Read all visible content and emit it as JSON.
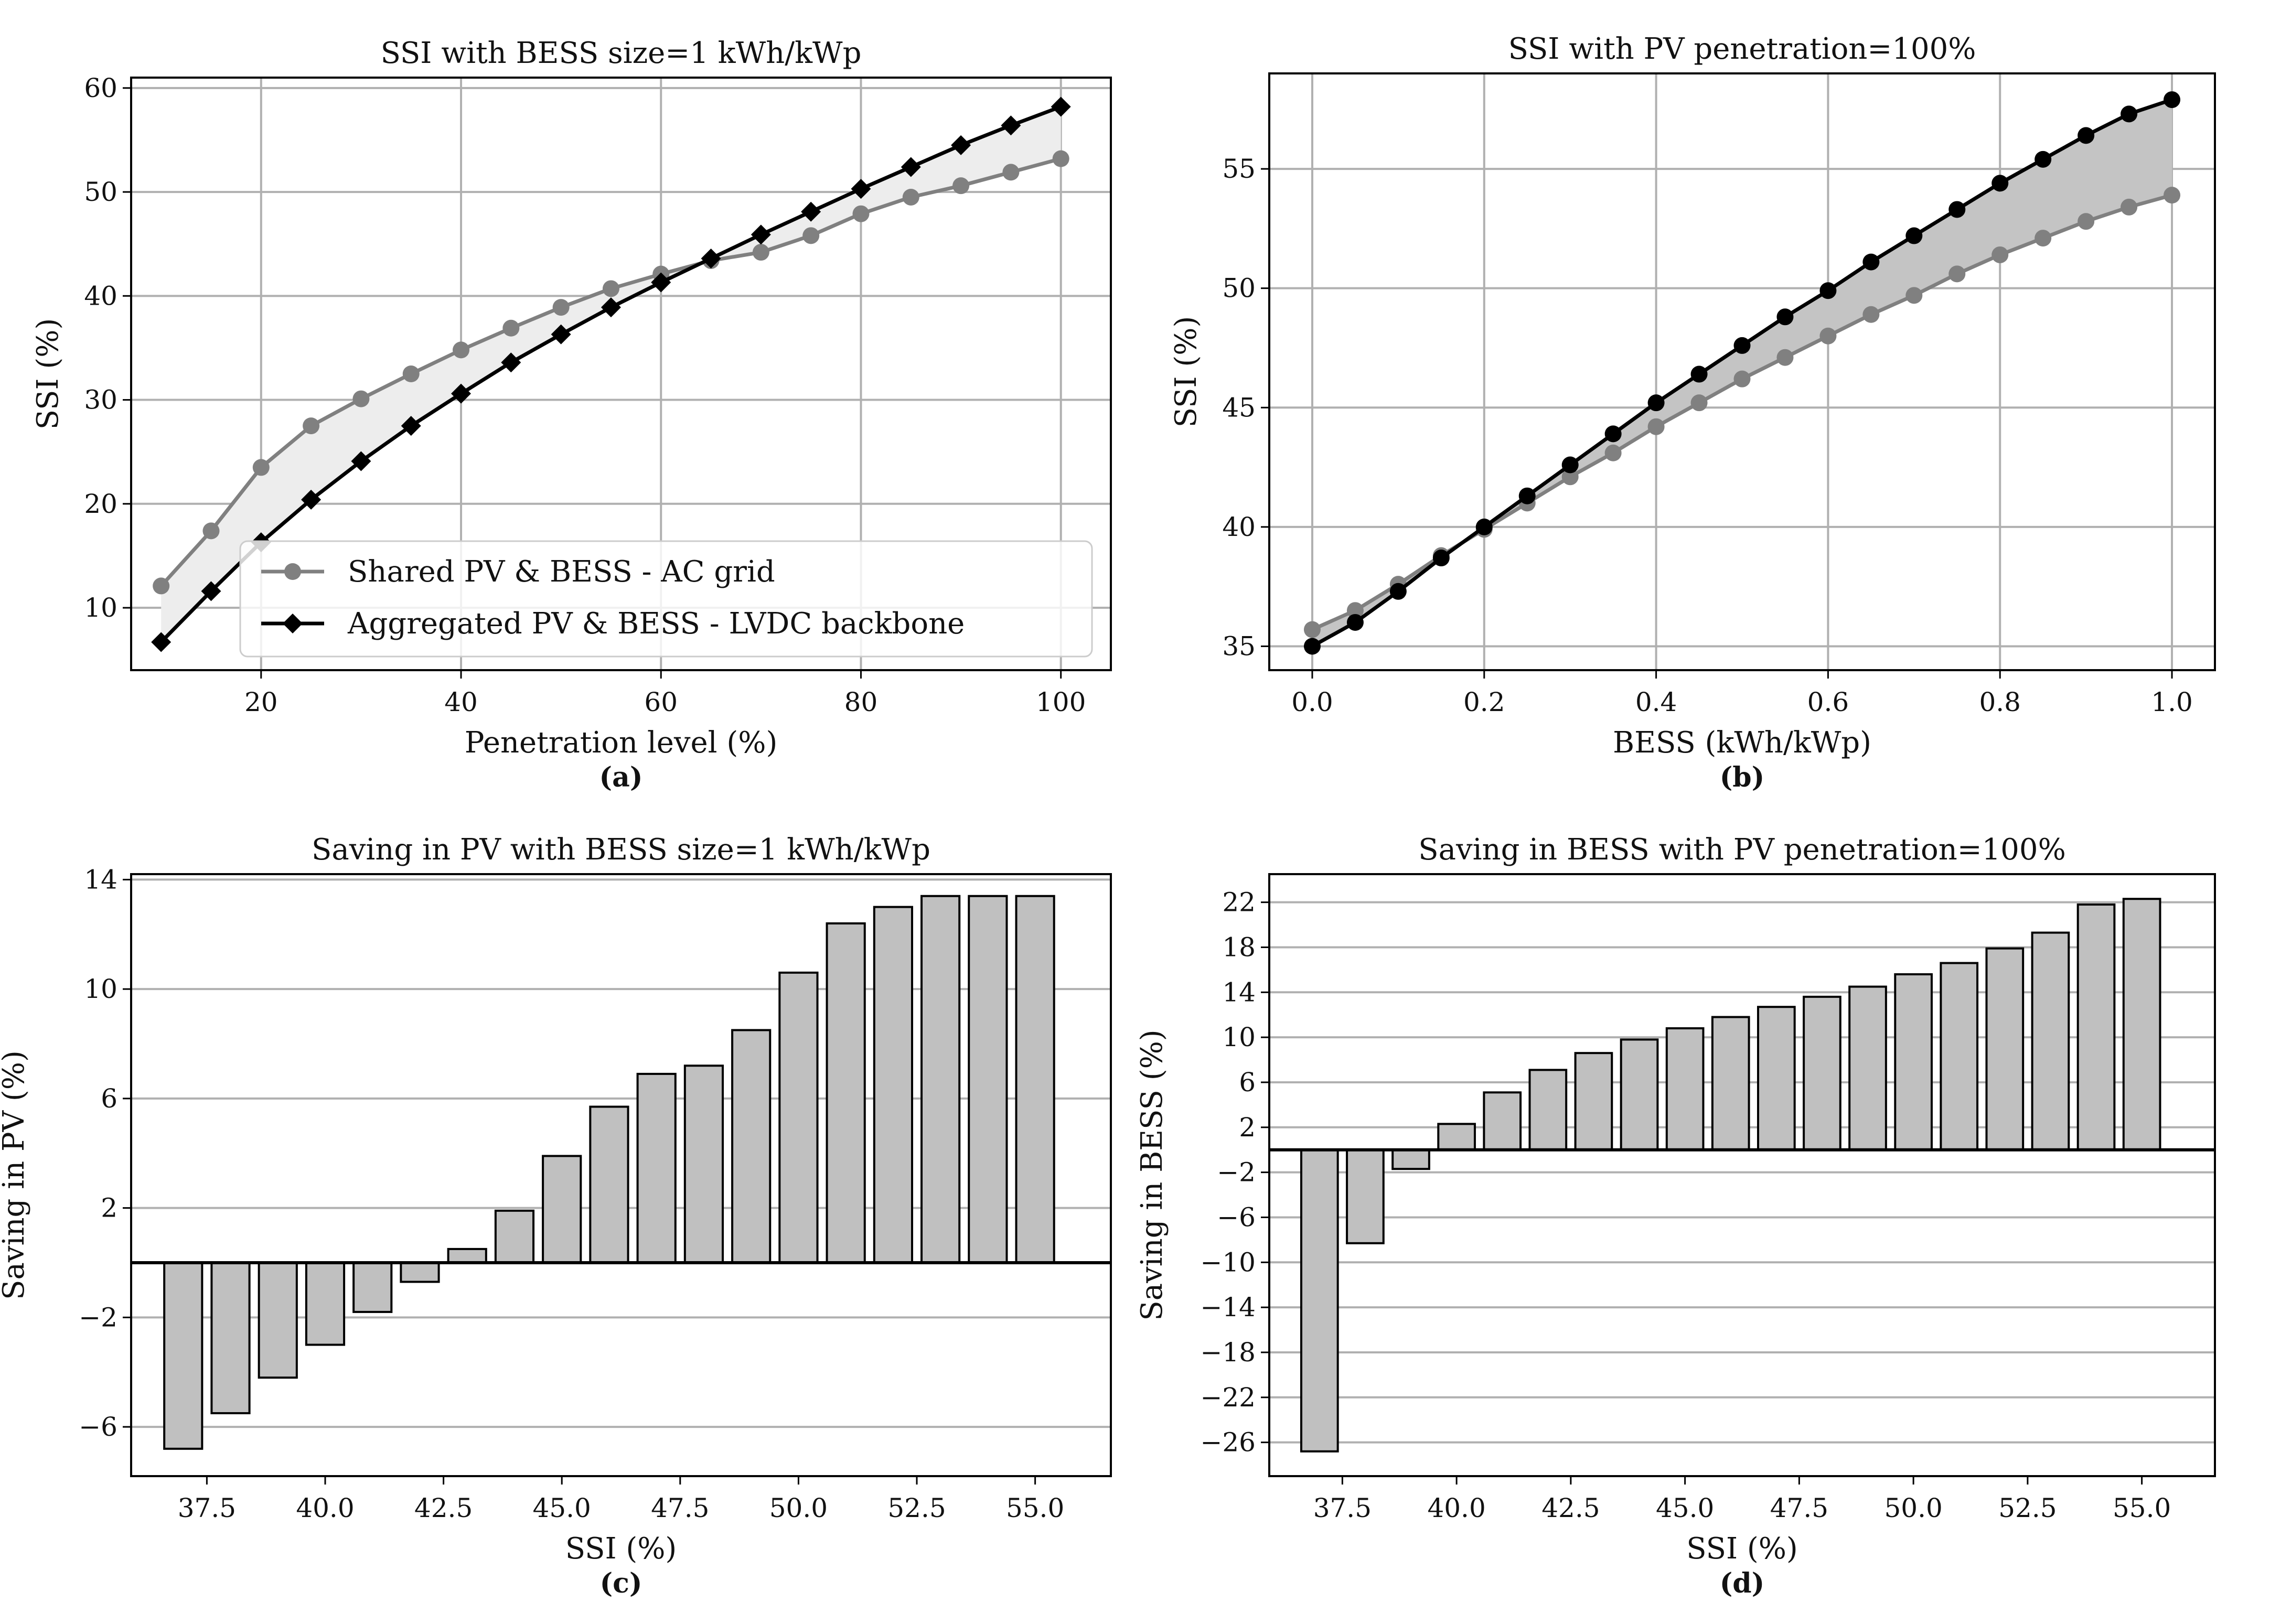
{
  "chart_data": [
    {
      "id": "a",
      "type": "line",
      "title": "SSI with BESS size=1 kWh/kWp",
      "xlabel": "Penetration level (%)",
      "ylabel": "SSI (%)",
      "panel_label": "(a)",
      "xlim": [
        7,
        105
      ],
      "ylim": [
        4,
        61
      ],
      "xticks": [
        20,
        40,
        60,
        80,
        100
      ],
      "yticks": [
        10,
        20,
        30,
        40,
        50,
        60
      ],
      "grid": true,
      "legend_position": "lower-center",
      "fill_between": true,
      "x": [
        10,
        15,
        20,
        25,
        30,
        35,
        40,
        45,
        50,
        55,
        60,
        65,
        70,
        75,
        80,
        85,
        90,
        95,
        100
      ],
      "series": [
        {
          "name": "Shared PV & BESS - AC grid",
          "color": "#808080",
          "marker": "circle",
          "values": [
            12.1,
            17.4,
            23.5,
            27.5,
            30.1,
            32.5,
            34.8,
            36.9,
            38.9,
            40.7,
            42.1,
            43.4,
            44.2,
            45.8,
            47.9,
            49.5,
            50.6,
            51.9,
            53.2
          ]
        },
        {
          "name": "Aggregated PV & BESS - LVDC backbone",
          "color": "#000000",
          "marker": "diamond",
          "values": [
            6.7,
            11.6,
            16.3,
            20.4,
            24.1,
            27.5,
            30.6,
            33.6,
            36.3,
            38.9,
            41.3,
            43.6,
            45.9,
            48.1,
            50.3,
            52.4,
            54.5,
            56.4,
            58.2
          ]
        }
      ]
    },
    {
      "id": "b",
      "type": "line",
      "title": "SSI with PV penetration=100%",
      "xlabel": "BESS (kWh/kWp)",
      "ylabel": "SSI (%)",
      "panel_label": "(b)",
      "xlim": [
        -0.05,
        1.05
      ],
      "ylim": [
        34,
        59
      ],
      "xticks": [
        0.0,
        0.2,
        0.4,
        0.6,
        0.8,
        1.0
      ],
      "xtick_labels": [
        "0.0",
        "0.2",
        "0.4",
        "0.6",
        "0.8",
        "1.0"
      ],
      "yticks": [
        35,
        40,
        45,
        50,
        55
      ],
      "grid": true,
      "fill_between": true,
      "x": [
        0.0,
        0.05,
        0.1,
        0.15,
        0.2,
        0.25,
        0.3,
        0.35,
        0.4,
        0.45,
        0.5,
        0.55,
        0.6,
        0.65,
        0.7,
        0.75,
        0.8,
        0.85,
        0.9,
        0.95,
        1.0
      ],
      "series": [
        {
          "name": "Shared PV & BESS - AC grid",
          "color": "#808080",
          "marker": "circle",
          "values": [
            35.7,
            36.5,
            37.6,
            38.8,
            39.9,
            41.0,
            42.1,
            43.1,
            44.2,
            45.2,
            46.2,
            47.1,
            48.0,
            48.9,
            49.7,
            50.6,
            51.4,
            52.1,
            52.8,
            53.4,
            53.9
          ]
        },
        {
          "name": "Aggregated PV & BESS - LVDC backbone",
          "color": "#000000",
          "marker": "circle",
          "values": [
            35.0,
            36.0,
            37.3,
            38.7,
            40.0,
            41.3,
            42.6,
            43.9,
            45.2,
            46.4,
            47.6,
            48.8,
            49.9,
            51.1,
            52.2,
            53.3,
            54.4,
            55.4,
            56.4,
            57.3,
            57.9
          ]
        }
      ]
    },
    {
      "id": "c",
      "type": "bar",
      "title": "Saving in PV with BESS size=1 kWh/kWp",
      "xlabel": "SSI (%)",
      "ylabel": "Saving in PV (%)",
      "panel_label": "(c)",
      "xlim": [
        35.9,
        56.6
      ],
      "ylim": [
        -7.8,
        14.2
      ],
      "xticks": [
        37.5,
        40.0,
        42.5,
        45.0,
        47.5,
        50.0,
        52.5,
        55.0
      ],
      "xtick_labels": [
        "37.5",
        "40.0",
        "42.5",
        "45.0",
        "47.5",
        "50.0",
        "52.5",
        "55.0"
      ],
      "yticks": [
        -6,
        -2,
        2,
        6,
        10,
        14
      ],
      "grid": "y",
      "color": "#c0c0c0",
      "bar_width": 0.8,
      "x": [
        37,
        38,
        39,
        40,
        41,
        42,
        43,
        44,
        45,
        46,
        47,
        48,
        49,
        50,
        51,
        52,
        53,
        54,
        55
      ],
      "values": [
        -6.8,
        -5.5,
        -4.2,
        -3.0,
        -1.8,
        -0.7,
        0.5,
        1.9,
        3.9,
        5.7,
        6.9,
        7.2,
        8.5,
        10.6,
        12.4,
        13.0,
        13.4,
        13.4,
        13.4
      ]
    },
    {
      "id": "d",
      "type": "bar",
      "title": "Saving in BESS with PV penetration=100%",
      "xlabel": "SSI (%)",
      "ylabel": "Saving in BESS (%)",
      "panel_label": "(d)",
      "xlim": [
        35.9,
        56.6
      ],
      "ylim": [
        -29,
        24.5
      ],
      "xticks": [
        37.5,
        40.0,
        42.5,
        45.0,
        47.5,
        50.0,
        52.5,
        55.0
      ],
      "xtick_labels": [
        "37.5",
        "40.0",
        "42.5",
        "45.0",
        "47.5",
        "50.0",
        "52.5",
        "55.0"
      ],
      "yticks": [
        -26,
        -22,
        -18,
        -14,
        -10,
        -6,
        -2,
        2,
        6,
        10,
        14,
        18,
        22
      ],
      "grid": "y",
      "color": "#c0c0c0",
      "bar_width": 0.8,
      "x": [
        37,
        38,
        39,
        40,
        41,
        42,
        43,
        44,
        45,
        46,
        47,
        48,
        49,
        50,
        51,
        52,
        53,
        54,
        55
      ],
      "values": [
        -26.8,
        -8.3,
        -1.7,
        2.3,
        5.1,
        7.1,
        8.6,
        9.8,
        10.8,
        11.8,
        12.7,
        13.6,
        14.5,
        15.6,
        16.6,
        17.9,
        19.3,
        21.8,
        22.3
      ]
    }
  ]
}
